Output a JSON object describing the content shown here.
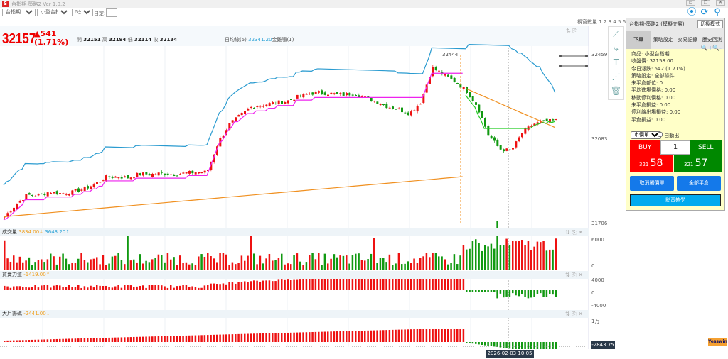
{
  "window": {
    "title": "台指期-策略2 Ver 1.0.2",
    "logo": "S"
  },
  "toolbar": {
    "market": "台指期",
    "product": "小型台指期",
    "interval": "5分K",
    "custom_label": "自定:",
    "custom_value": ""
  },
  "window_count": "視窗數量 1 2 3 4 5 6",
  "quote": {
    "price": "32157",
    "change": "▲541",
    "change_pct": "(1.71%)",
    "open_label": "開",
    "open": "32151",
    "high_label": "高",
    "high": "32194",
    "low_label": "低",
    "low": "32114",
    "close_label": "收",
    "close": "32134",
    "ma_label": "日均線(5)",
    "ma_value": "32341.20",
    "golden_label": "金雞嘯(1)"
  },
  "price_axis": {
    "top": "32459",
    "mid": "32083",
    "bottom": "31706",
    "peak_label": "32444"
  },
  "volume": {
    "title": "成交量",
    "v1": "3834.00↓",
    "v2": "3643.20↑",
    "axis_top": "6000",
    "axis_zero": "0"
  },
  "power": {
    "title": "買賣力道",
    "v1": "-1419.00↑",
    "axis_top": "4000",
    "axis_zero": "0",
    "axis_bottom": "-4000"
  },
  "bigplayer": {
    "title": "大戶籌碼",
    "v1": "-2441.00↓",
    "axis_top": "1万",
    "last_value": "-2843.75"
  },
  "cursor_date": "2026-02-03  10:05",
  "brand": "Yesswin",
  "panel": {
    "title": "台指期-策略2 (模擬交易)",
    "mode_button": "切換模式",
    "tabs": [
      "下單",
      "策略設定",
      "交易記錄",
      "歷史回測"
    ],
    "info": [
      "商品: 小型台指期",
      "收盤價: 32158.00",
      "今日漲跌: 542 (1.71%)",
      "策略設定: 全部條件",
      "未平倉部位: 0",
      "平均進場價格: 0.00",
      "移動停利價格: 0.00",
      "未平倉損益: 0.00",
      "停利線出場損益: 0.00",
      "平倉損益: 0.00"
    ],
    "order_type": "市價單",
    "auto_exit": "自動出",
    "buy": "BUY",
    "sell": "SELL",
    "qty": "1",
    "buy_price_prefix": "321",
    "buy_price": "58",
    "sell_price_prefix": "321",
    "sell_price": "57",
    "cancel_button": "取消觸價單",
    "close_all_button": "全部平倉",
    "video_button": "影音教學"
  },
  "colors": {
    "up": "#ee1111",
    "down": "#119911",
    "upper_band": "#2a9bd0",
    "trail": "#ee22ee",
    "ma": "#f09020",
    "stop": "#22cc22"
  },
  "chart_data": {
    "type": "candlestick",
    "ylim": [
      31706,
      32459
    ],
    "closes": [
      31737,
      31790,
      31833,
      31830,
      31848,
      31840,
      31845,
      31860,
      31880,
      31912,
      31915,
      31910,
      31927,
      31925,
      31930,
      31925,
      31930,
      31935,
      31935,
      32070,
      32150,
      32190,
      32228,
      32235,
      32244,
      32250,
      32270,
      32285,
      32290,
      32285,
      32280,
      32285,
      32270,
      32250,
      32228,
      32215,
      32196,
      32250,
      32402,
      32370,
      32340,
      32300,
      32230,
      32100,
      32038,
      32030,
      32110,
      32150,
      32160,
      32165
    ]
  }
}
